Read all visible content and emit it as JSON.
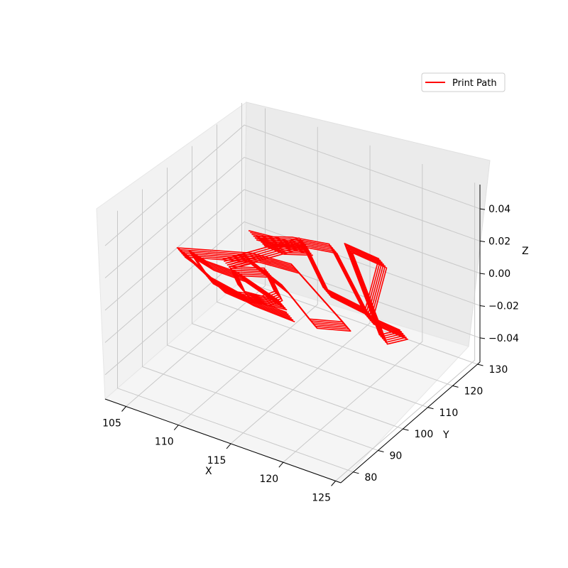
{
  "chart_data": {
    "type": "line",
    "projection": "3d",
    "title": "",
    "xlabel": "X",
    "ylabel": "Y",
    "zlabel": "Z",
    "xlim": [
      103,
      125.5
    ],
    "ylim": [
      75,
      131
    ],
    "zlim": [
      -0.055,
      0.055
    ],
    "x_ticks": [
      105,
      110,
      115,
      120,
      125
    ],
    "y_ticks": [
      80,
      90,
      100,
      110,
      120,
      130
    ],
    "z_ticks": [
      -0.04,
      -0.02,
      0.0,
      0.02,
      0.04
    ],
    "z_tick_labels": [
      "−0.04",
      "−0.02",
      "0.00",
      "0.02",
      "0.04"
    ],
    "grid": true,
    "legend_position": "top-right",
    "series": [
      {
        "name": "Print Path",
        "color": "#ff0000",
        "z": 0.0,
        "note_layers": 6,
        "path": [
          [
            106.5,
            118.0
          ],
          [
            109.0,
            119.0
          ],
          [
            111.5,
            119.5
          ],
          [
            109.5,
            116.5
          ],
          [
            107.5,
            117.0
          ],
          [
            110.0,
            121.0
          ],
          [
            113.0,
            123.0
          ],
          [
            121.0,
            104.0
          ],
          [
            124.5,
            103.0
          ],
          [
            123.5,
            99.0
          ],
          [
            114.0,
            125.0
          ],
          [
            117.5,
            124.0
          ],
          [
            120.5,
            106.0
          ],
          [
            116.0,
            108.0
          ],
          [
            110.5,
            121.5
          ],
          [
            107.0,
            105.5
          ],
          [
            108.0,
            109.5
          ],
          [
            113.0,
            104.0
          ],
          [
            117.5,
            96.0
          ],
          [
            120.0,
            99.0
          ],
          [
            112.0,
            112.0
          ],
          [
            108.5,
            111.0
          ],
          [
            103.0,
            104.0
          ],
          [
            104.0,
            103.0
          ],
          [
            108.5,
            97.0
          ],
          [
            110.5,
            96.5
          ],
          [
            112.5,
            98.0
          ],
          [
            113.0,
            101.0
          ],
          [
            111.0,
            106.0
          ],
          [
            110.5,
            107.5
          ],
          [
            108.0,
            104.0
          ],
          [
            110.0,
            99.0
          ],
          [
            111.0,
            97.5
          ],
          [
            114.0,
            98.5
          ],
          [
            109.0,
            103.0
          ],
          [
            106.0,
            103.0
          ],
          [
            104.0,
            104.5
          ],
          [
            107.0,
            98.5
          ],
          [
            111.5,
            96.0
          ],
          [
            115.5,
            95.5
          ]
        ]
      }
    ]
  }
}
